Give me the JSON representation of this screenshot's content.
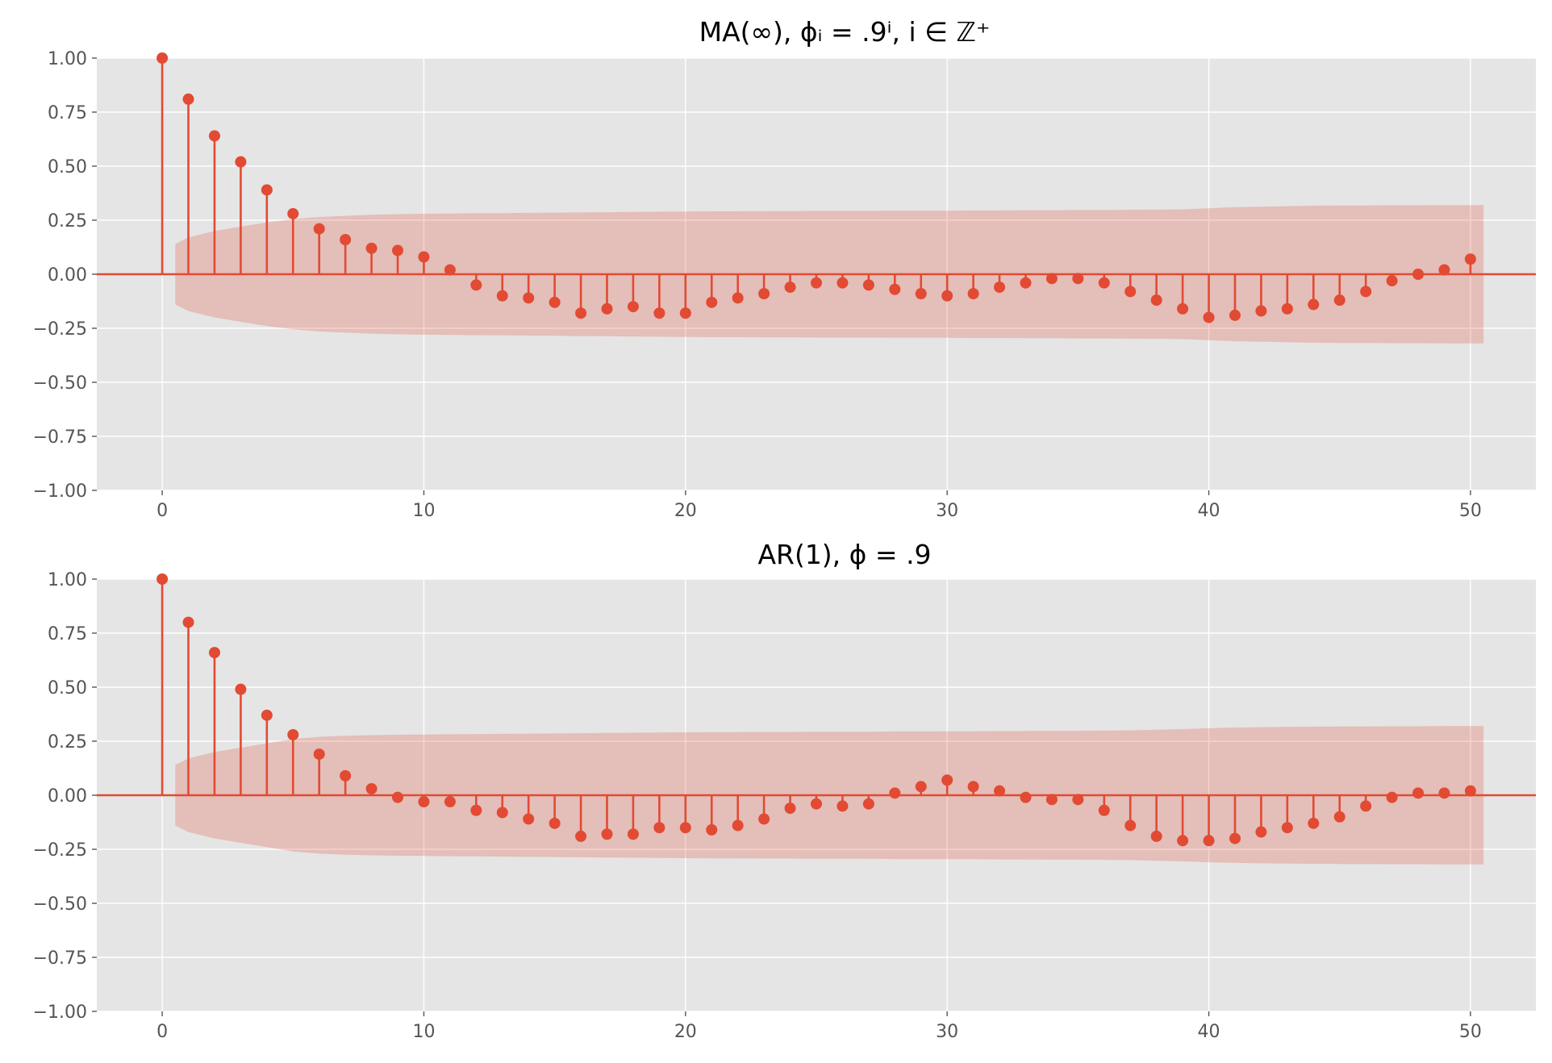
{
  "chart_data": [
    {
      "type": "stem",
      "title": "MA(∞), ϕᵢ = .9ⁱ, i ∈ ℤ⁺",
      "xlim": [
        -2.5,
        52.5
      ],
      "ylim": [
        -1.0,
        1.0
      ],
      "xticks": [
        0,
        10,
        20,
        30,
        40,
        50
      ],
      "xtick_labels": [
        "0",
        "10",
        "20",
        "30",
        "40",
        "50"
      ],
      "yticks": [
        -1.0,
        -0.75,
        -0.5,
        -0.25,
        0.0,
        0.25,
        0.5,
        0.75,
        1.0
      ],
      "ytick_labels": [
        "−1.00",
        "−0.75",
        "−0.50",
        "−0.25",
        "0.00",
        "0.25",
        "0.50",
        "0.75",
        "1.00"
      ],
      "grid": true,
      "x": [
        0,
        1,
        2,
        3,
        4,
        5,
        6,
        7,
        8,
        9,
        10,
        11,
        12,
        13,
        14,
        15,
        16,
        17,
        18,
        19,
        20,
        21,
        22,
        23,
        24,
        25,
        26,
        27,
        28,
        29,
        30,
        31,
        32,
        33,
        34,
        35,
        36,
        37,
        38,
        39,
        40,
        41,
        42,
        43,
        44,
        45,
        46,
        47,
        48,
        49,
        50
      ],
      "values": [
        1.0,
        0.81,
        0.64,
        0.52,
        0.39,
        0.28,
        0.21,
        0.16,
        0.12,
        0.11,
        0.08,
        0.02,
        -0.05,
        -0.1,
        -0.11,
        -0.13,
        -0.18,
        -0.16,
        -0.15,
        -0.18,
        -0.18,
        -0.13,
        -0.11,
        -0.09,
        -0.06,
        -0.04,
        -0.04,
        -0.05,
        -0.07,
        -0.09,
        -0.1,
        -0.09,
        -0.06,
        -0.04,
        -0.02,
        -0.02,
        -0.04,
        -0.08,
        -0.12,
        -0.16,
        -0.2,
        -0.19,
        -0.17,
        -0.16,
        -0.14,
        -0.12,
        -0.08,
        -0.03,
        0.0,
        0.02,
        0.07
      ],
      "confint_upper": [
        0.14,
        0.17,
        0.2,
        0.22,
        0.24,
        0.255,
        0.265,
        0.27,
        0.275,
        0.278,
        0.28,
        0.281,
        0.282,
        0.283,
        0.284,
        0.285,
        0.286,
        0.287,
        0.288,
        0.289,
        0.29,
        0.291,
        0.291,
        0.292,
        0.292,
        0.293,
        0.293,
        0.293,
        0.294,
        0.294,
        0.294,
        0.295,
        0.295,
        0.296,
        0.296,
        0.297,
        0.297,
        0.298,
        0.299,
        0.3,
        0.305,
        0.31,
        0.312,
        0.315,
        0.317,
        0.318,
        0.318,
        0.319,
        0.319,
        0.32,
        0.32
      ]
    },
    {
      "type": "stem",
      "title": "AR(1), ϕ = .9",
      "xlim": [
        -2.5,
        52.5
      ],
      "ylim": [
        -1.0,
        1.0
      ],
      "xticks": [
        0,
        10,
        20,
        30,
        40,
        50
      ],
      "xtick_labels": [
        "0",
        "10",
        "20",
        "30",
        "40",
        "50"
      ],
      "yticks": [
        -1.0,
        -0.75,
        -0.5,
        -0.25,
        0.0,
        0.25,
        0.5,
        0.75,
        1.0
      ],
      "ytick_labels": [
        "−1.00",
        "−0.75",
        "−0.50",
        "−0.25",
        "0.00",
        "0.25",
        "0.50",
        "0.75",
        "1.00"
      ],
      "grid": true,
      "x": [
        0,
        1,
        2,
        3,
        4,
        5,
        6,
        7,
        8,
        9,
        10,
        11,
        12,
        13,
        14,
        15,
        16,
        17,
        18,
        19,
        20,
        21,
        22,
        23,
        24,
        25,
        26,
        27,
        28,
        29,
        30,
        31,
        32,
        33,
        34,
        35,
        36,
        37,
        38,
        39,
        40,
        41,
        42,
        43,
        44,
        45,
        46,
        47,
        48,
        49,
        50
      ],
      "values": [
        1.0,
        0.8,
        0.66,
        0.49,
        0.37,
        0.28,
        0.19,
        0.09,
        0.03,
        -0.01,
        -0.03,
        -0.03,
        -0.07,
        -0.08,
        -0.11,
        -0.13,
        -0.19,
        -0.18,
        -0.18,
        -0.15,
        -0.15,
        -0.16,
        -0.14,
        -0.11,
        -0.06,
        -0.04,
        -0.05,
        -0.04,
        0.01,
        0.04,
        0.07,
        0.04,
        0.02,
        -0.01,
        -0.02,
        -0.02,
        -0.07,
        -0.14,
        -0.19,
        -0.21,
        -0.21,
        -0.2,
        -0.17,
        -0.15,
        -0.13,
        -0.1,
        -0.05,
        -0.01,
        0.01,
        0.01,
        0.02
      ],
      "confint_upper": [
        0.14,
        0.17,
        0.2,
        0.22,
        0.24,
        0.26,
        0.27,
        0.275,
        0.278,
        0.28,
        0.281,
        0.282,
        0.283,
        0.284,
        0.285,
        0.286,
        0.287,
        0.288,
        0.289,
        0.29,
        0.291,
        0.292,
        0.292,
        0.293,
        0.293,
        0.294,
        0.294,
        0.294,
        0.295,
        0.295,
        0.296,
        0.296,
        0.297,
        0.297,
        0.298,
        0.298,
        0.299,
        0.3,
        0.303,
        0.306,
        0.31,
        0.313,
        0.315,
        0.316,
        0.317,
        0.318,
        0.318,
        0.319,
        0.319,
        0.32,
        0.32
      ]
    }
  ],
  "colors": {
    "stem": "#e24a33",
    "band": "#e24a33",
    "axes_bg": "#e5e5e5",
    "grid": "#ffffff",
    "tick_label": "#555555"
  }
}
